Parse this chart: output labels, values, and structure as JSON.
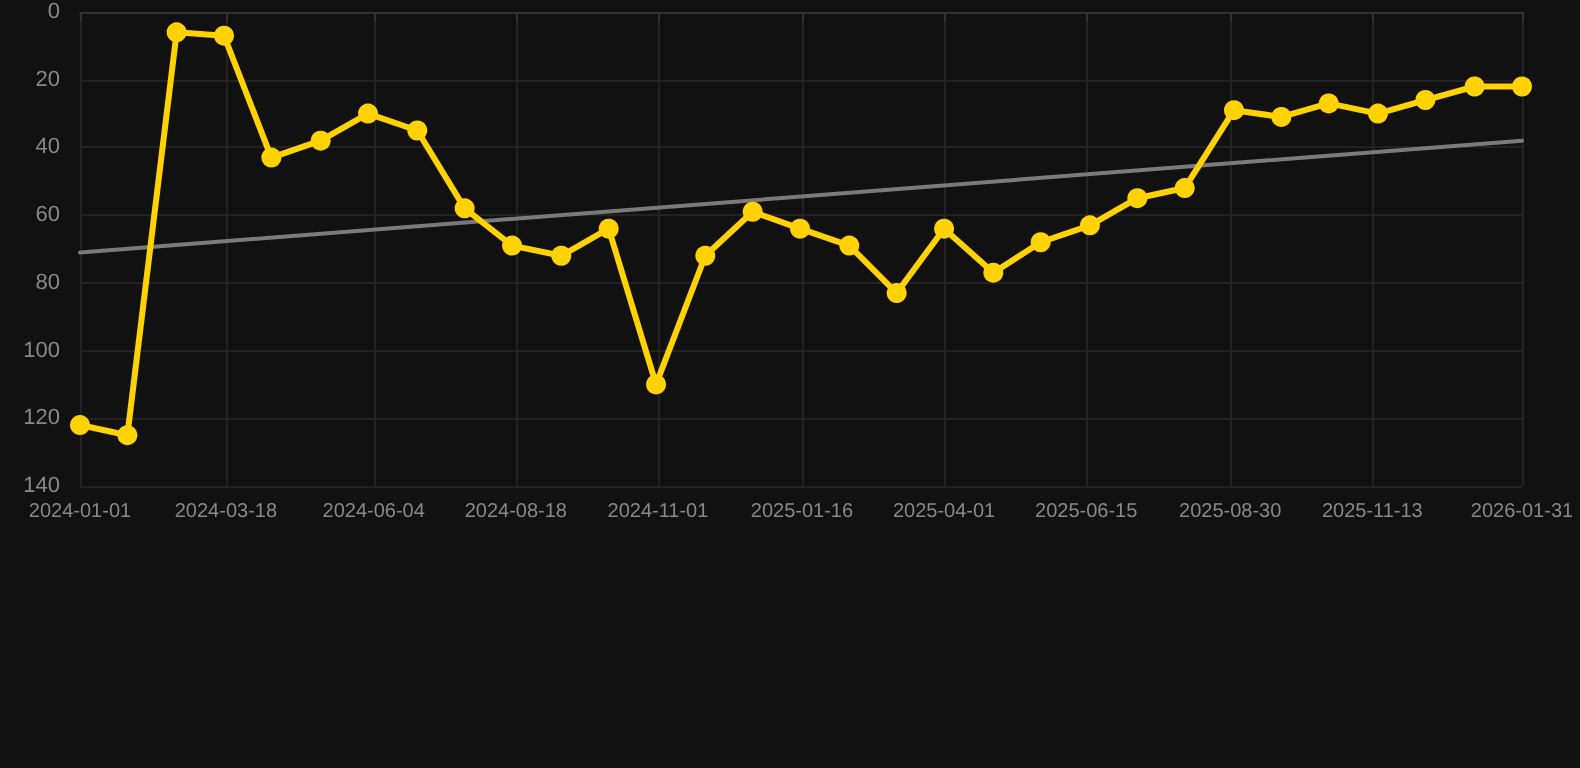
{
  "chart_data": {
    "type": "line",
    "x": [
      "2024-01-01",
      "2024-01-26",
      "2024-02-21",
      "2024-03-17",
      "2024-04-11",
      "2024-05-07",
      "2024-06-01",
      "2024-06-27",
      "2024-07-22",
      "2024-08-16",
      "2024-09-11",
      "2024-10-06",
      "2024-10-31",
      "2024-11-26",
      "2024-12-21",
      "2025-01-15",
      "2025-02-10",
      "2025-03-07",
      "2025-04-01",
      "2025-04-27",
      "2025-05-22",
      "2025-06-17",
      "2025-07-12",
      "2025-08-06",
      "2025-09-01",
      "2025-09-26",
      "2025-10-21",
      "2025-11-16",
      "2025-12-11",
      "2026-01-06",
      "2026-01-31"
    ],
    "series": [
      {
        "color": "#ffd200",
        "marker": "circle",
        "values": [
          122,
          125,
          6,
          7,
          43,
          38,
          30,
          35,
          58,
          69,
          72,
          64,
          110,
          72,
          59,
          64,
          69,
          83,
          64,
          77,
          68,
          63,
          55,
          52,
          29,
          31,
          27,
          30,
          26,
          22,
          22
        ]
      },
      {
        "type": "line",
        "color": "#7a7a7a",
        "marker": "none",
        "x": [
          "2024-01-01",
          "2026-01-31"
        ],
        "values": [
          71,
          38
        ]
      }
    ],
    "xlim": [
      "2024-01-01",
      "2026-01-31"
    ],
    "xticks": [
      "2024-01-01",
      "2024-03-18",
      "2024-06-04",
      "2024-08-18",
      "2024-11-01",
      "2025-01-16",
      "2025-04-01",
      "2025-06-15",
      "2025-08-30",
      "2025-11-13",
      "2026-01-31"
    ],
    "ylim": [
      140,
      0
    ],
    "yticks": [
      0,
      20,
      40,
      60,
      80,
      100,
      120,
      140
    ],
    "grid": true
  }
}
